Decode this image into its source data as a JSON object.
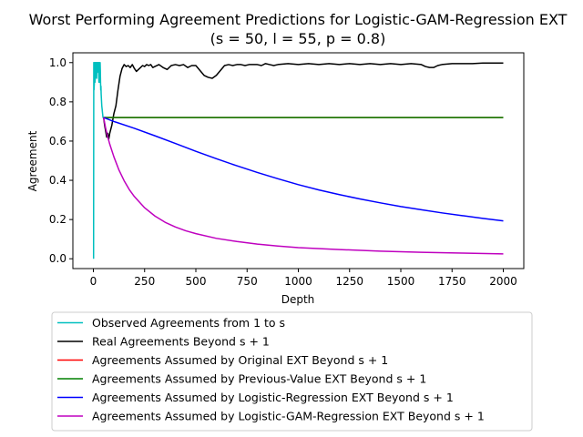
{
  "chart_data": {
    "type": "line",
    "title": "Worst Performing Agreement Predictions for Logistic-GAM-Regression EXT",
    "subtitle": "(s = 50, l = 55, p = 0.8)",
    "xlabel": "Depth",
    "ylabel": "Agreement",
    "xlim": [
      -100,
      2100
    ],
    "ylim": [
      -0.05,
      1.05
    ],
    "xticks": [
      0,
      250,
      500,
      750,
      1000,
      1250,
      1500,
      1750,
      2000
    ],
    "yticks": [
      0.0,
      0.2,
      0.4,
      0.6,
      0.8,
      1.0
    ],
    "grid": false,
    "legend_position": "below",
    "series": [
      {
        "name": "Observed Agreements from 1 to s",
        "color": "#00bfbf",
        "x": [
          1,
          2,
          3,
          4,
          5,
          6,
          7,
          8,
          9,
          10,
          11,
          12,
          13,
          14,
          15,
          16,
          17,
          18,
          19,
          20,
          21,
          22,
          23,
          24,
          25,
          26,
          27,
          28,
          29,
          30,
          31,
          32,
          33,
          34,
          35,
          36,
          37,
          38,
          39,
          40,
          41,
          42,
          43,
          44,
          45,
          46,
          47,
          48,
          49,
          50
        ],
        "y": [
          0.0,
          1.0,
          0.86,
          0.88,
          0.9,
          1.0,
          1.0,
          0.9,
          0.92,
          1.0,
          1.0,
          0.95,
          1.0,
          1.0,
          1.0,
          0.92,
          1.0,
          1.0,
          0.95,
          1.0,
          1.0,
          1.0,
          0.96,
          1.0,
          1.0,
          0.94,
          0.9,
          1.0,
          0.96,
          0.93,
          0.9,
          0.95,
          1.0,
          0.96,
          0.9,
          0.86,
          0.88,
          0.84,
          0.82,
          0.8,
          0.78,
          0.77,
          0.76,
          0.75,
          0.74,
          0.73,
          0.72,
          0.72,
          0.72,
          0.72
        ]
      },
      {
        "name": "Real Agreements Beyond s + 1",
        "color": "#000000",
        "x": [
          50,
          55,
          60,
          65,
          70,
          75,
          80,
          90,
          100,
          110,
          120,
          130,
          140,
          150,
          160,
          170,
          180,
          190,
          200,
          210,
          220,
          230,
          240,
          250,
          260,
          270,
          280,
          290,
          300,
          320,
          340,
          360,
          380,
          400,
          420,
          440,
          460,
          480,
          500,
          520,
          540,
          560,
          580,
          600,
          620,
          640,
          660,
          680,
          700,
          720,
          740,
          760,
          780,
          800,
          820,
          840,
          860,
          880,
          900,
          950,
          1000,
          1050,
          1100,
          1150,
          1200,
          1250,
          1300,
          1350,
          1400,
          1450,
          1500,
          1550,
          1600,
          1620,
          1640,
          1660,
          1680,
          1700,
          1750,
          1800,
          1850,
          1900,
          1950,
          2000
        ],
        "y": [
          0.72,
          0.68,
          0.65,
          0.62,
          0.64,
          0.61,
          0.64,
          0.68,
          0.74,
          0.78,
          0.86,
          0.93,
          0.97,
          0.99,
          0.98,
          0.985,
          0.975,
          0.99,
          0.97,
          0.955,
          0.965,
          0.975,
          0.985,
          0.98,
          0.99,
          0.985,
          0.99,
          0.975,
          0.98,
          0.99,
          0.975,
          0.965,
          0.985,
          0.99,
          0.985,
          0.99,
          0.975,
          0.985,
          0.985,
          0.96,
          0.935,
          0.925,
          0.92,
          0.935,
          0.96,
          0.985,
          0.99,
          0.985,
          0.99,
          0.99,
          0.985,
          0.99,
          0.99,
          0.99,
          0.985,
          0.995,
          0.99,
          0.985,
          0.99,
          0.995,
          0.99,
          0.995,
          0.99,
          0.995,
          0.99,
          0.995,
          0.99,
          0.995,
          0.99,
          0.995,
          0.99,
          0.995,
          0.99,
          0.98,
          0.975,
          0.975,
          0.985,
          0.99,
          0.995,
          0.995,
          0.995,
          0.998,
          0.998,
          0.998
        ]
      },
      {
        "name": "Agreements Assumed by Original EXT Beyond s + 1",
        "color": "#ff0000",
        "x": [
          50,
          2000
        ],
        "y": [
          0.72,
          0.72
        ]
      },
      {
        "name": "Agreements Assumed by Previous-Value EXT Beyond s + 1",
        "color": "#008000",
        "x": [
          50,
          2000
        ],
        "y": [
          0.72,
          0.72
        ]
      },
      {
        "name": "Agreements Assumed by Logistic-Regression EXT Beyond s + 1",
        "color": "#0000ff",
        "x": [
          50,
          100,
          200,
          300,
          400,
          500,
          600,
          700,
          800,
          900,
          1000,
          1100,
          1200,
          1300,
          1400,
          1500,
          1600,
          1700,
          1800,
          1900,
          2000
        ],
        "y": [
          0.72,
          0.7,
          0.665,
          0.627,
          0.588,
          0.548,
          0.51,
          0.474,
          0.44,
          0.408,
          0.378,
          0.351,
          0.327,
          0.305,
          0.285,
          0.266,
          0.25,
          0.234,
          0.22,
          0.206,
          0.193
        ]
      },
      {
        "name": "Agreements Assumed by Logistic-GAM-Regression EXT Beyond s + 1",
        "color": "#bf00bf",
        "x": [
          50,
          60,
          70,
          80,
          100,
          125,
          150,
          175,
          200,
          250,
          300,
          350,
          400,
          450,
          500,
          600,
          700,
          800,
          900,
          1000,
          1200,
          1400,
          1600,
          1800,
          2000
        ],
        "y": [
          0.72,
          0.665,
          0.622,
          0.584,
          0.52,
          0.452,
          0.398,
          0.353,
          0.317,
          0.26,
          0.218,
          0.186,
          0.162,
          0.143,
          0.128,
          0.104,
          0.088,
          0.075,
          0.065,
          0.057,
          0.047,
          0.039,
          0.033,
          0.029,
          0.025
        ]
      }
    ]
  }
}
